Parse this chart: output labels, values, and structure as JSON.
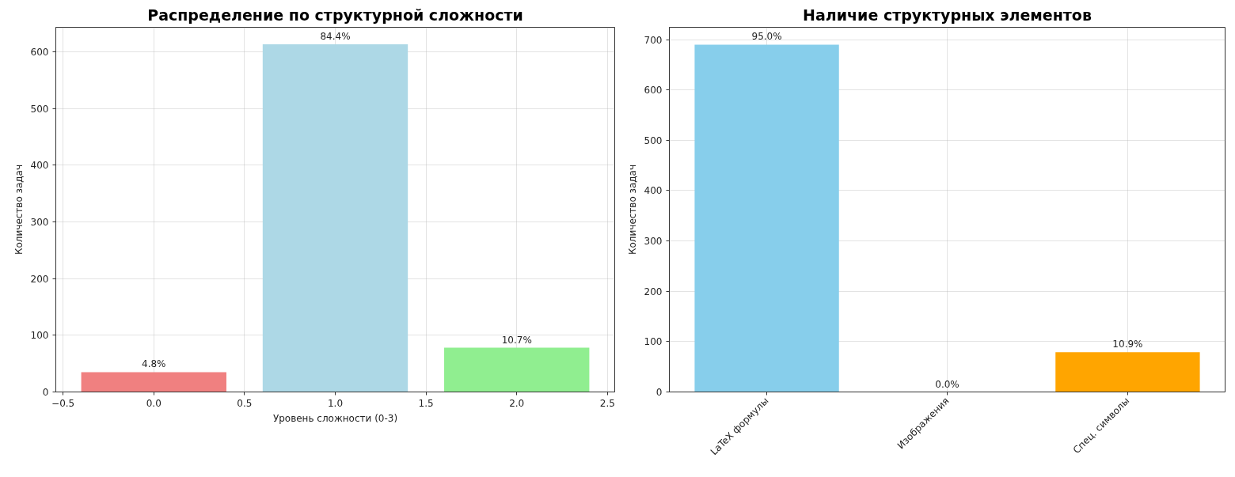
{
  "chart_data": [
    {
      "type": "bar",
      "title": "Распределение по структурной сложности",
      "xlabel": "Уровень сложности (0-3)",
      "ylabel": "Количество задач",
      "x": [
        0,
        1,
        2
      ],
      "values": [
        35,
        613,
        78
      ],
      "colors": [
        "#f08080",
        "#add8e6",
        "#90ee90"
      ],
      "annotations": [
        {
          "text": "4.8%",
          "x": 0,
          "y": 35
        },
        {
          "text": "84.4%",
          "x": 1,
          "y": 613
        },
        {
          "text": "10.7%",
          "x": 2,
          "y": 78
        }
      ],
      "xlim": [
        -0.54,
        2.54
      ],
      "ylim": [
        0,
        643
      ],
      "xticks": [
        {
          "value": -0.5,
          "label": "−0.5"
        },
        {
          "value": 0,
          "label": "0.0"
        },
        0.5,
        {
          "value": 1,
          "label": "1.0"
        },
        1.5,
        {
          "value": 2,
          "label": "2.0"
        },
        2.5
      ],
      "yticks": [
        0,
        100,
        200,
        300,
        400,
        500,
        600
      ],
      "grid": true
    },
    {
      "type": "bar",
      "title": "Наличие структурных элементов",
      "ylabel": "Количество задач",
      "categories": [
        "LaTeX формулы",
        "Изображения",
        "Спец. символы"
      ],
      "values": [
        690,
        0,
        79
      ],
      "colors": [
        "#87ceeb",
        null,
        "#ffa500"
      ],
      "annotations": [
        {
          "text": "95.0%",
          "x": "LaTeX формулы",
          "y": 690
        },
        {
          "text": "0.0%",
          "x": "Изображения",
          "y": 0
        },
        {
          "text": "10.9%",
          "x": "Спец. символы",
          "y": 79
        }
      ],
      "ylim": [
        0,
        724.5
      ],
      "yticks": [
        0,
        100,
        200,
        300,
        400,
        500,
        600,
        700
      ],
      "grid": true
    }
  ]
}
